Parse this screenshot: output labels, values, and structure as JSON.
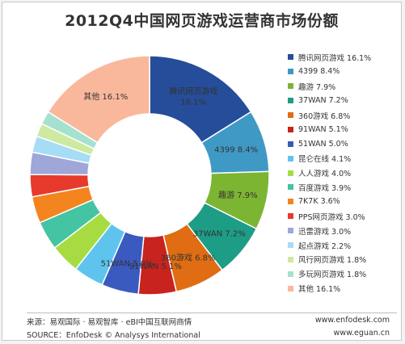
{
  "chart_data": {
    "type": "pie",
    "title": "2012Q4中国网页游戏运营商市场份额",
    "center_label": "",
    "slices": [
      {
        "name": "腾讯网页游戏",
        "value": 16.1,
        "display": "16.1%",
        "color": "#264d99"
      },
      {
        "name": "4399",
        "value": 8.4,
        "display": "8.4%",
        "color": "#3f99c5"
      },
      {
        "name": "趣游",
        "value": 7.9,
        "display": "7.9%",
        "color": "#7cb532"
      },
      {
        "name": "37WAN",
        "value": 7.2,
        "display": "7.2%",
        "color": "#1d9d86"
      },
      {
        "name": "360游戏",
        "value": 6.8,
        "display": "6.8%",
        "color": "#e06d13"
      },
      {
        "name": "91WAN",
        "value": 5.1,
        "display": "5.1%",
        "color": "#c8231f"
      },
      {
        "name": "51WAN",
        "value": 5.0,
        "display": "5.0%",
        "color": "#3a5ac0"
      },
      {
        "name": "昆仑在线",
        "value": 4.1,
        "display": "4.1%",
        "color": "#5ec4ee"
      },
      {
        "name": "人人游戏",
        "value": 4.0,
        "display": "4.0%",
        "color": "#a6dc42"
      },
      {
        "name": "百度游戏",
        "value": 3.9,
        "display": "3.9%",
        "color": "#44c4a3"
      },
      {
        "name": "7K7K",
        "value": 3.6,
        "display": "3.6%",
        "color": "#f4841d"
      },
      {
        "name": "PPS网页游戏",
        "value": 3.0,
        "display": "3.0%",
        "color": "#e73a2c"
      },
      {
        "name": "迅雷游戏",
        "value": 3.0,
        "display": "3.0%",
        "color": "#9fa6d8"
      },
      {
        "name": "起点游戏",
        "value": 2.2,
        "display": "2.2%",
        "color": "#a7dcf5"
      },
      {
        "name": "风行网页游戏",
        "value": 1.8,
        "display": "1.8%",
        "color": "#cdeaa0"
      },
      {
        "name": "多玩网页游戏",
        "value": 1.8,
        "display": "1.8%",
        "color": "#a6e1cf"
      },
      {
        "name": "其他",
        "value": 16.1,
        "display": "16.1%",
        "color": "#f9b89c"
      }
    ],
    "slice_labels": [
      {
        "index": 0,
        "lines": [
          "腾讯网页游戏",
          "16.1%"
        ]
      },
      {
        "index": 1,
        "lines": [
          "4399 8.4%"
        ]
      },
      {
        "index": 2,
        "lines": [
          "趣游 7.9%"
        ]
      },
      {
        "index": 3,
        "lines": [
          "37WAN 7.2%"
        ]
      },
      {
        "index": 4,
        "lines": [
          "360游戏 6.8%"
        ]
      },
      {
        "index": 5,
        "lines": [
          "91WAN 5.1%"
        ]
      },
      {
        "index": 6,
        "lines": [
          "51WAN 5.0%"
        ]
      },
      {
        "index": 16,
        "lines": [
          "其他 16.1%"
        ]
      }
    ],
    "legend_position": "right"
  },
  "footer": {
    "source_cn": "来源：易观国际 · 易观智库 · eBI中国互联网商情",
    "source_en": "SOURCE：EnfoDesk © Analysys International",
    "url1": "www.enfodesk.com",
    "url2": "www.eguan.cn"
  }
}
